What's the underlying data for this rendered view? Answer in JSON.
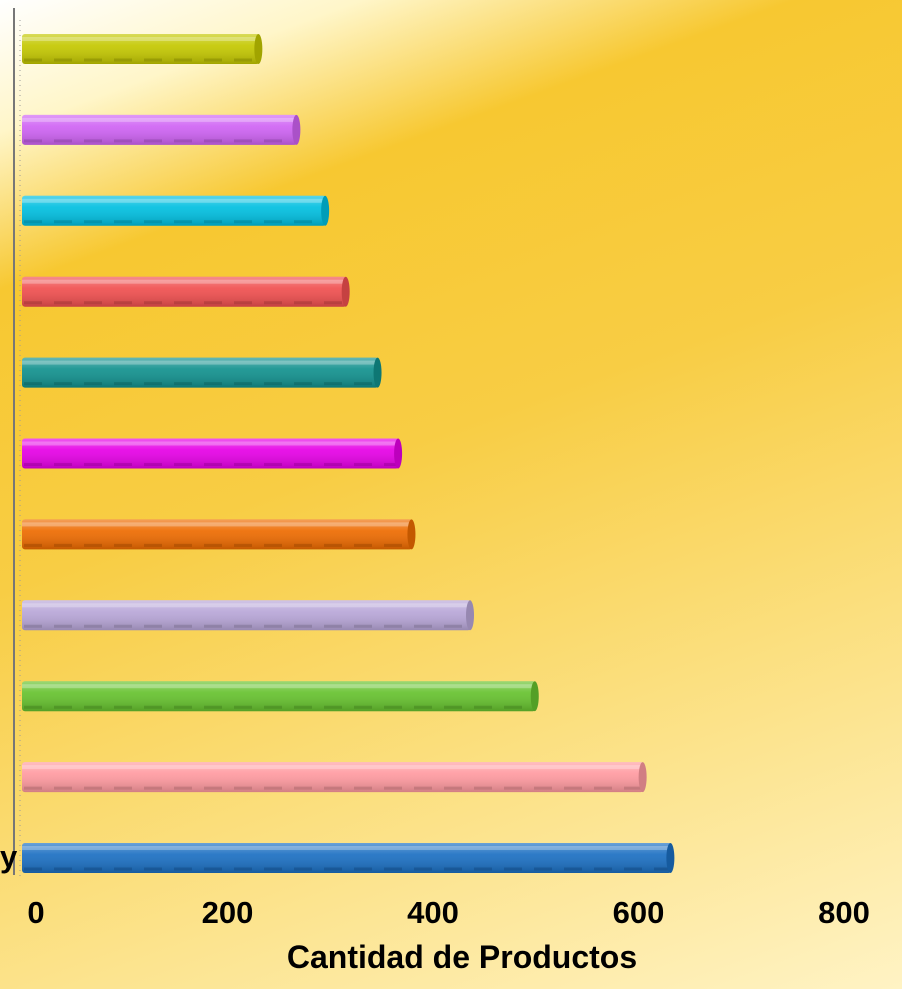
{
  "chart_data": {
    "type": "bar",
    "orientation": "horizontal",
    "xlabel": "Cantidad de Productos",
    "xlim": [
      0,
      800
    ],
    "x_ticks": [
      0,
      200,
      400,
      600,
      800
    ],
    "x_tick_labels": [
      "0",
      "200",
      "400",
      "600",
      "800"
    ],
    "grid": false,
    "legend": "none",
    "partial_category_label": "y",
    "bars": [
      {
        "value": 632,
        "color": "#1b6fc2"
      },
      {
        "value": 605,
        "color": "#ff9aa0"
      },
      {
        "value": 500,
        "color": "#66c22e"
      },
      {
        "value": 437,
        "color": "#b8a6d8"
      },
      {
        "value": 380,
        "color": "#ee6b00"
      },
      {
        "value": 367,
        "color": "#e600e6"
      },
      {
        "value": 347,
        "color": "#11918e"
      },
      {
        "value": 316,
        "color": "#f04f4f"
      },
      {
        "value": 296,
        "color": "#00bfe0"
      },
      {
        "value": 268,
        "color": "#cf63f4"
      },
      {
        "value": 231,
        "color": "#c4c800"
      }
    ]
  }
}
